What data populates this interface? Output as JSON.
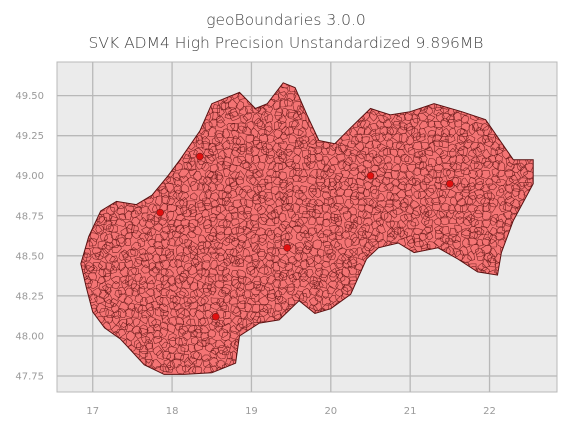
{
  "title": {
    "line1": "geoBoundaries 3.0.0",
    "line2": "SVK ADM4 High Precision Unstandardized 9.896MB"
  },
  "colors": {
    "background": "#ebebeb",
    "grid": "#b8b8b8",
    "fill": "#f47474",
    "edge": "#5a1010",
    "highlight": "#e01010"
  },
  "chart_data": {
    "type": "map",
    "title": "geoBoundaries 3.0.0 SVK ADM4 High Precision Unstandardized 9.896MB",
    "xlim": [
      16.55,
      22.85
    ],
    "ylim": [
      47.65,
      49.71
    ],
    "xticks": [
      "17",
      "18",
      "19",
      "20",
      "21",
      "22"
    ],
    "xtick_values": [
      17,
      18,
      19,
      20,
      21,
      22
    ],
    "yticks": [
      "47.75",
      "48.00",
      "48.25",
      "48.50",
      "48.75",
      "49.00",
      "49.25",
      "49.50"
    ],
    "ytick_values": [
      47.75,
      48.0,
      48.25,
      48.5,
      48.75,
      49.0,
      49.25,
      49.5
    ],
    "grid": true,
    "country_outline": [
      [
        16.85,
        48.45
      ],
      [
        16.95,
        48.62
      ],
      [
        17.1,
        48.78
      ],
      [
        17.3,
        48.84
      ],
      [
        17.55,
        48.82
      ],
      [
        17.75,
        48.88
      ],
      [
        17.95,
        49.0
      ],
      [
        18.1,
        49.1
      ],
      [
        18.35,
        49.28
      ],
      [
        18.5,
        49.45
      ],
      [
        18.85,
        49.52
      ],
      [
        19.05,
        49.42
      ],
      [
        19.2,
        49.45
      ],
      [
        19.4,
        49.58
      ],
      [
        19.55,
        49.55
      ],
      [
        19.7,
        49.38
      ],
      [
        19.85,
        49.22
      ],
      [
        20.05,
        49.2
      ],
      [
        20.25,
        49.3
      ],
      [
        20.5,
        49.42
      ],
      [
        20.75,
        49.38
      ],
      [
        21.0,
        49.4
      ],
      [
        21.3,
        49.45
      ],
      [
        21.65,
        49.4
      ],
      [
        21.95,
        49.35
      ],
      [
        22.3,
        49.1
      ],
      [
        22.55,
        49.1
      ],
      [
        22.55,
        48.95
      ],
      [
        22.3,
        48.72
      ],
      [
        22.15,
        48.52
      ],
      [
        22.1,
        48.38
      ],
      [
        21.85,
        48.4
      ],
      [
        21.6,
        48.48
      ],
      [
        21.35,
        48.55
      ],
      [
        21.05,
        48.52
      ],
      [
        20.85,
        48.58
      ],
      [
        20.6,
        48.55
      ],
      [
        20.45,
        48.48
      ],
      [
        20.25,
        48.26
      ],
      [
        20.0,
        48.17
      ],
      [
        19.8,
        48.14
      ],
      [
        19.6,
        48.22
      ],
      [
        19.35,
        48.1
      ],
      [
        19.1,
        48.08
      ],
      [
        18.85,
        48.0
      ],
      [
        18.8,
        47.83
      ],
      [
        18.5,
        47.77
      ],
      [
        18.15,
        47.76
      ],
      [
        17.9,
        47.76
      ],
      [
        17.65,
        47.82
      ],
      [
        17.35,
        47.98
      ],
      [
        17.15,
        48.05
      ],
      [
        17.0,
        48.15
      ],
      [
        16.92,
        48.3
      ]
    ]
  }
}
